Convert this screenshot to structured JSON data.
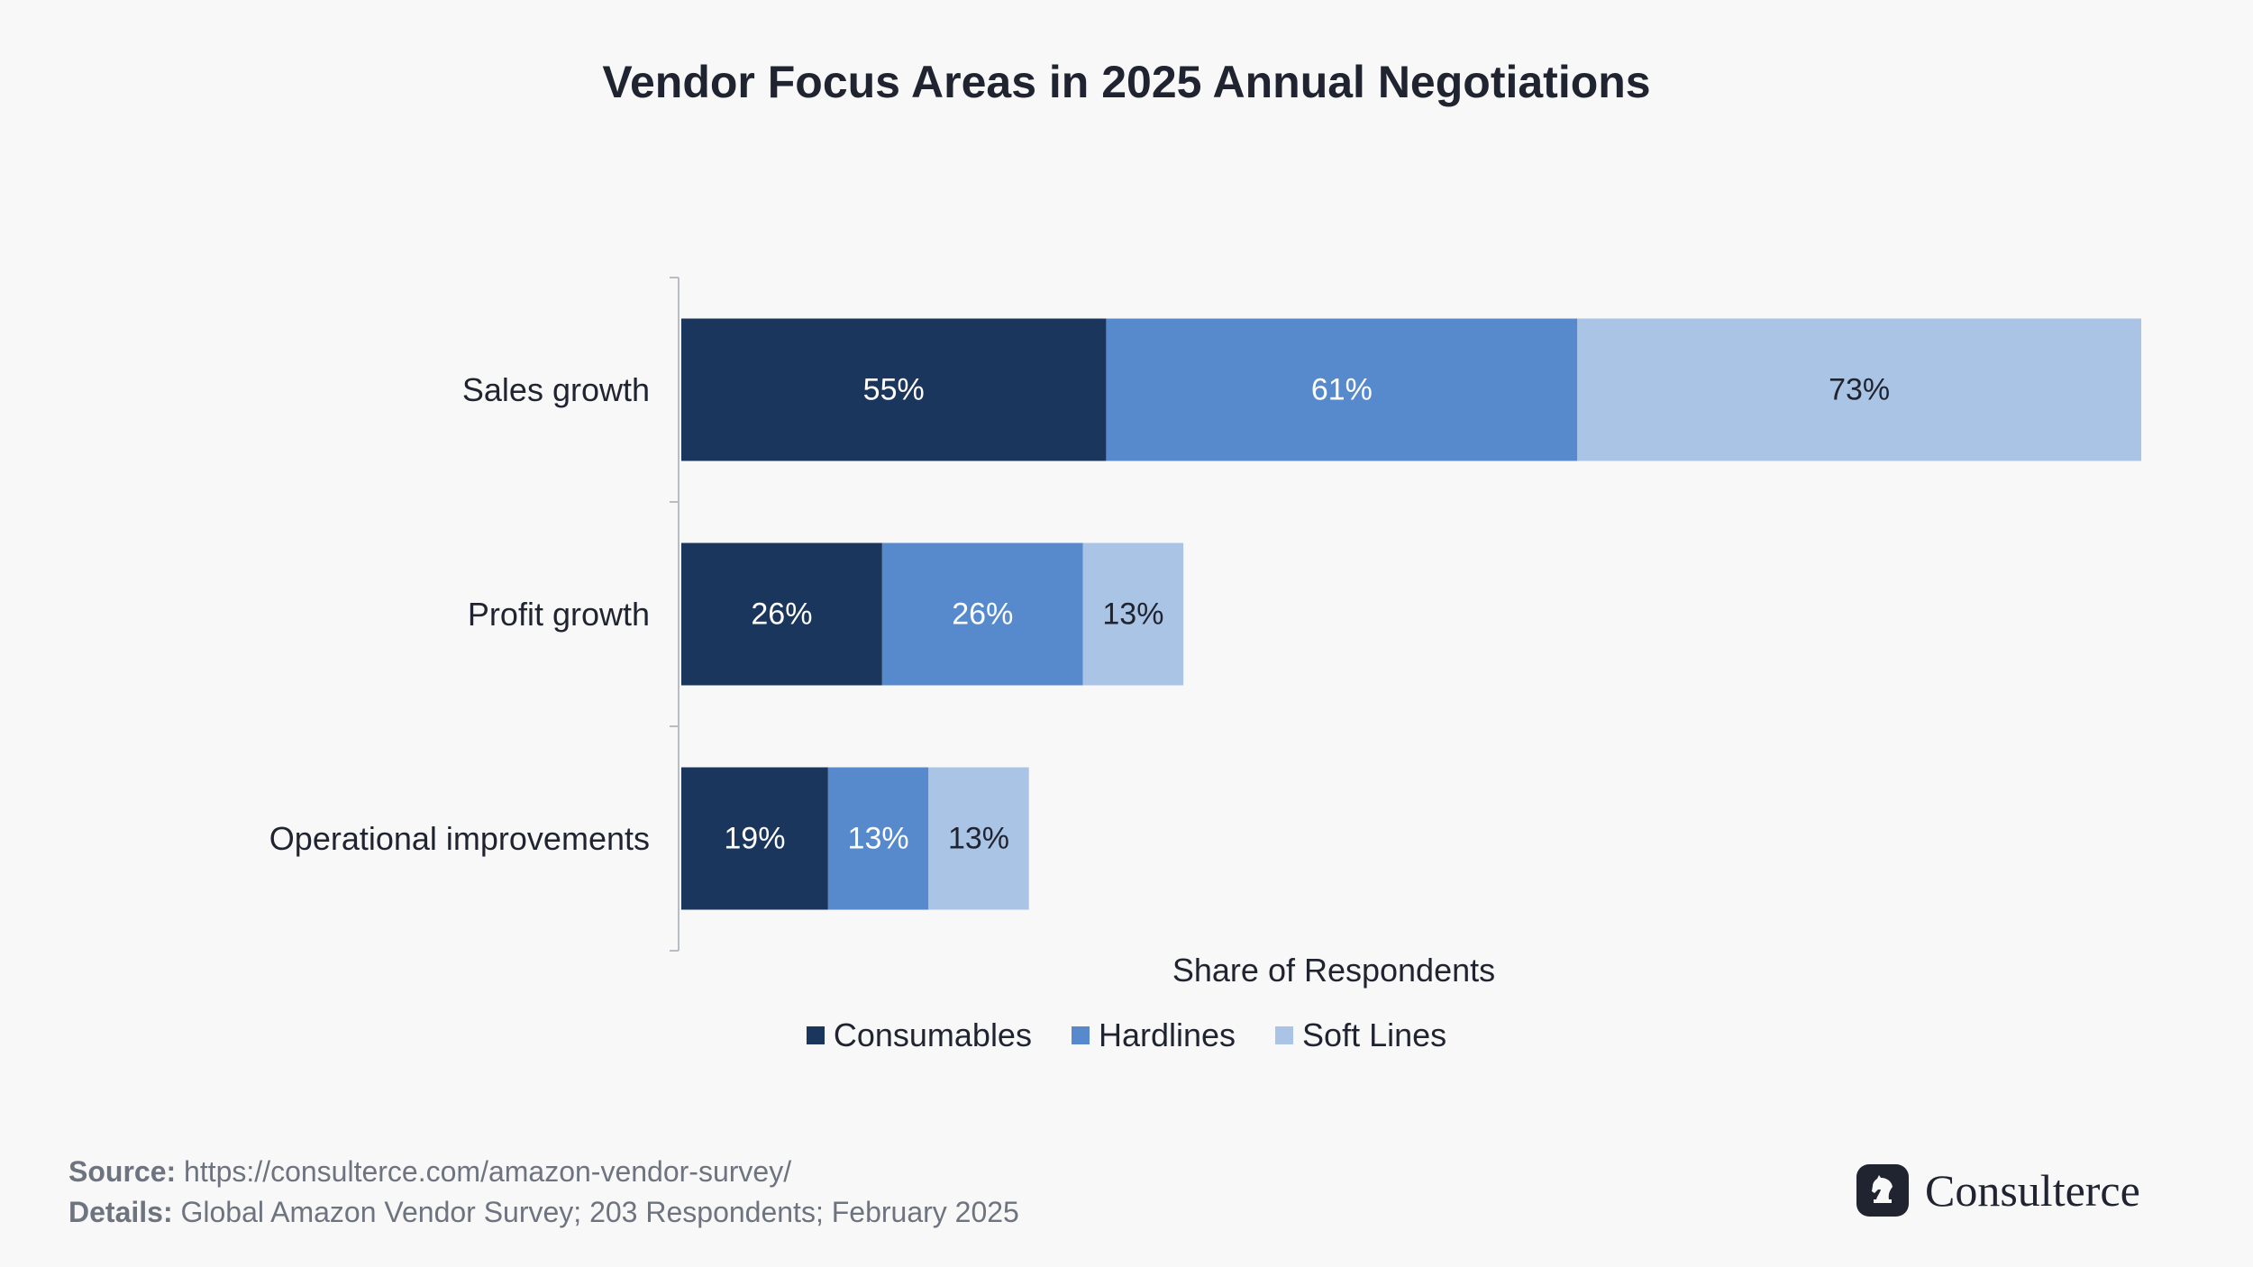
{
  "chart_data": {
    "type": "bar",
    "orientation": "horizontal",
    "stacked": true,
    "title": "Vendor Focus Areas in 2025 Annual Negotiations",
    "xlabel": "Share of Respondents",
    "ylabel": "",
    "categories": [
      "Sales growth",
      "Profit growth",
      "Operational improvements"
    ],
    "series": [
      {
        "name": "Consumables",
        "values": [
          55,
          26,
          19
        ],
        "labels": [
          "55%",
          "26%",
          "19%"
        ],
        "color": "#1b365d",
        "label_color": "#ffffff"
      },
      {
        "name": "Hardlines",
        "values": [
          61,
          26,
          13
        ],
        "labels": [
          "61%",
          "26%",
          "13%"
        ],
        "color": "#578acd",
        "label_color": "#ffffff"
      },
      {
        "name": "Soft Lines",
        "values": [
          73,
          13,
          13
        ],
        "labels": [
          "73%",
          "13%",
          "13%"
        ],
        "color": "#aac4e6",
        "label_color": "#1f2430"
      }
    ],
    "xlim": [
      0,
      189
    ],
    "grid": false,
    "legend_position": "bottom-center"
  },
  "footer": {
    "source_key": "Source:",
    "source_value": " https://consulterce.com/amazon-vendor-survey/",
    "details_key": "Details:",
    "details_value": " Global Amazon Vendor Survey; 203 Respondents; February 2025"
  },
  "brand": {
    "name": "Consulterce",
    "icon": "knight-chess-icon"
  }
}
